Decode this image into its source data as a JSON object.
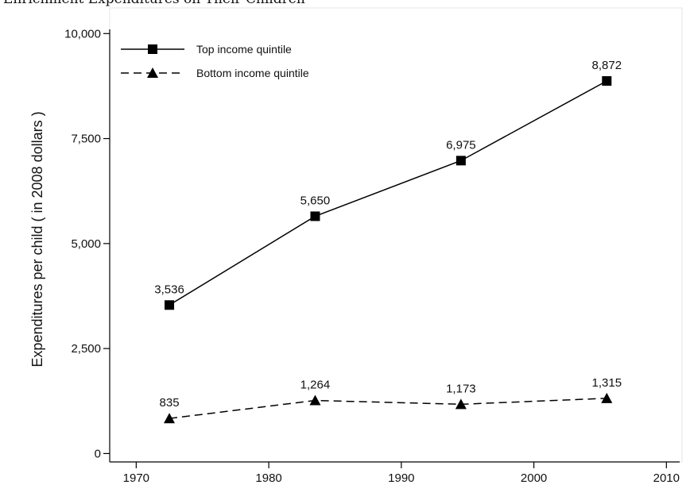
{
  "chart_data": {
    "type": "line",
    "title": "Enrichment Expenditures on Their Children",
    "xlabel": "",
    "ylabel": "Expenditures per child ( in 2008 dollars )",
    "xlim": [
      1968,
      2011
    ],
    "ylim": [
      -200,
      10100
    ],
    "xticks": [
      1970,
      1980,
      1990,
      2000,
      2010
    ],
    "yticks": [
      0,
      2500,
      5000,
      7500,
      10000
    ],
    "xtick_labels": [
      "1970",
      "1980",
      "1990",
      "2000",
      "2010"
    ],
    "ytick_labels": [
      "0",
      "2,500",
      "5,000",
      "7,500",
      "10,000"
    ],
    "grid": false,
    "legend": {
      "placement": "top-left",
      "entries": [
        "Top income quintile",
        "Bottom income quintile"
      ]
    },
    "series": [
      {
        "name": "Top income quintile",
        "marker": "square",
        "line": "solid",
        "x": [
          1972.5,
          1983.5,
          1994.5,
          2005.5
        ],
        "values": [
          3536,
          5650,
          6975,
          8872
        ],
        "labels": [
          "3,536",
          "5,650",
          "6,975",
          "8,872"
        ]
      },
      {
        "name": "Bottom income quintile",
        "marker": "triangle",
        "line": "dashed",
        "x": [
          1972.5,
          1983.5,
          1994.5,
          2005.5
        ],
        "values": [
          835,
          1264,
          1173,
          1315
        ],
        "labels": [
          "835",
          "1,264",
          "1,173",
          "1,315"
        ]
      }
    ]
  }
}
